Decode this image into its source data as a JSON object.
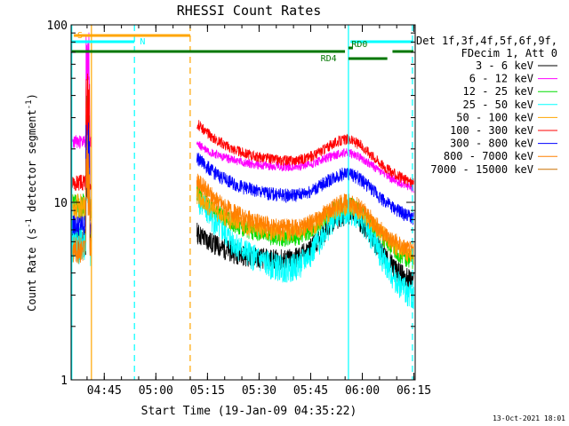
{
  "chart_data": {
    "type": "line",
    "title": "RHESSI Count Rates",
    "xlabel": "Start Time (19-Jan-09 04:35:22)",
    "ylabel_main": "Count Rate (s",
    "ylabel_sup1": "-1",
    "ylabel_mid": " detector segment",
    "ylabel_sup2": "-1",
    "ylabel_end": ")",
    "x_unit": "minutes after 04:35:22",
    "xlim": [
      0,
      100
    ],
    "ylim": [
      1,
      100
    ],
    "y_scale": "log",
    "x_ticks": [
      {
        "label": "04:45",
        "value": 9.63
      },
      {
        "label": "05:00",
        "value": 24.63
      },
      {
        "label": "05:15",
        "value": 39.63
      },
      {
        "label": "05:30",
        "value": 54.63
      },
      {
        "label": "05:45",
        "value": 69.63
      },
      {
        "label": "06:00",
        "value": 84.63
      },
      {
        "label": "06:15",
        "value": 99.63
      }
    ],
    "y_ticks": [
      {
        "label": "1",
        "value": 1
      },
      {
        "label": "10",
        "value": 10
      },
      {
        "label": "100",
        "value": 100
      }
    ],
    "legend_header": [
      "Det 1f,3f,4f,5f,6f,9f,",
      "FDecim 1, Att 0"
    ],
    "legend_position": "right",
    "series": [
      {
        "name": "3 - 6 keV",
        "color": "#000000",
        "start": [
          6.2,
          6.8
        ],
        "base": 4.6,
        "bump": 4.0,
        "noise": 0.14,
        "seed": 11
      },
      {
        "name": "6 - 12 keV",
        "color": "#ff00ff",
        "start": [
          22.0,
          21.5
        ],
        "base": 15.5,
        "bump": 3.5,
        "noise": 0.06,
        "seed": 23
      },
      {
        "name": "12 - 25 keV",
        "color": "#00dd00",
        "start": [
          9.5,
          11.5
        ],
        "base": 6.0,
        "bump": 3.6,
        "noise": 0.12,
        "seed": 37
      },
      {
        "name": "25 - 50 keV",
        "color": "#00ffff",
        "start": [
          6.0,
          11.0
        ],
        "base": 3.8,
        "bump": 5.2,
        "noise": 0.18,
        "seed": 41
      },
      {
        "name": "50 - 100 keV",
        "color": "#ffa500",
        "start": [
          9.5,
          11.0
        ],
        "base": 6.5,
        "bump": 3.0,
        "noise": 0.12,
        "seed": 53
      },
      {
        "name": "100 - 300 keV",
        "color": "#ff0000",
        "start": [
          13.0,
          28.0
        ],
        "base": 16.5,
        "bump": 6.0,
        "noise": 0.07,
        "seed": 67
      },
      {
        "name": "300 - 800 keV",
        "color": "#0000ff",
        "start": [
          7.5,
          18.0
        ],
        "base": 10.5,
        "bump": 4.0,
        "noise": 0.09,
        "seed": 79
      },
      {
        "name": "800 - 7000 keV",
        "color": "#ff8000",
        "start": [
          5.5,
          13.5
        ],
        "base": 6.8,
        "bump": 3.2,
        "noise": 0.12,
        "seed": 83
      },
      {
        "name": "7000 - 15000 keV",
        "color": "#cc7000",
        "start": [
          0,
          0
        ],
        "base": 0,
        "bump": 0,
        "noise": 0,
        "seed": 97
      }
    ],
    "gaps": [
      [
        5.9,
        36.5
      ]
    ],
    "vertical_markers": [
      {
        "x": 0.2,
        "style": "solid",
        "color": "#00ffff"
      },
      {
        "x": 5.9,
        "style": "solid",
        "color": "#ffa500"
      },
      {
        "x": 18.4,
        "style": "dashed",
        "color": "#00ffff"
      },
      {
        "x": 34.6,
        "style": "dashed",
        "color": "#ffa500"
      },
      {
        "x": 80.6,
        "style": "solid",
        "color": "#00ffff"
      },
      {
        "x": 99.2,
        "style": "dashed",
        "color": "#00ffff"
      }
    ],
    "flag_bars": [
      {
        "label": "S",
        "color": "#ffa500",
        "x0": 0.8,
        "x1": 34.6,
        "level": 0,
        "label_at": 1.8
      },
      {
        "label": "N",
        "color": "#00ffff",
        "x0": 0.2,
        "x1": 18.4,
        "level": 1,
        "label_at": 20.0
      },
      {
        "label": "",
        "color": "#00ffff",
        "x0": 81.2,
        "x1": 99.5,
        "level": 1,
        "label_at": 0
      },
      {
        "label": "RD0",
        "color": "#007700",
        "x0": 80.6,
        "x1": 81.9,
        "level": 2,
        "label_at": 81.5
      },
      {
        "label": "",
        "color": "#007700",
        "x0": 0.2,
        "x1": 79.6,
        "level": 3,
        "label_at": 0
      },
      {
        "label": "",
        "color": "#007700",
        "x0": 93.4,
        "x1": 99.5,
        "level": 3,
        "label_at": 0
      },
      {
        "label": "RD4",
        "color": "#007700",
        "x0": 80.6,
        "x1": 91.9,
        "level": 4,
        "label_at": 72.5
      }
    ],
    "footer": "13-Oct-2021 18:01"
  }
}
